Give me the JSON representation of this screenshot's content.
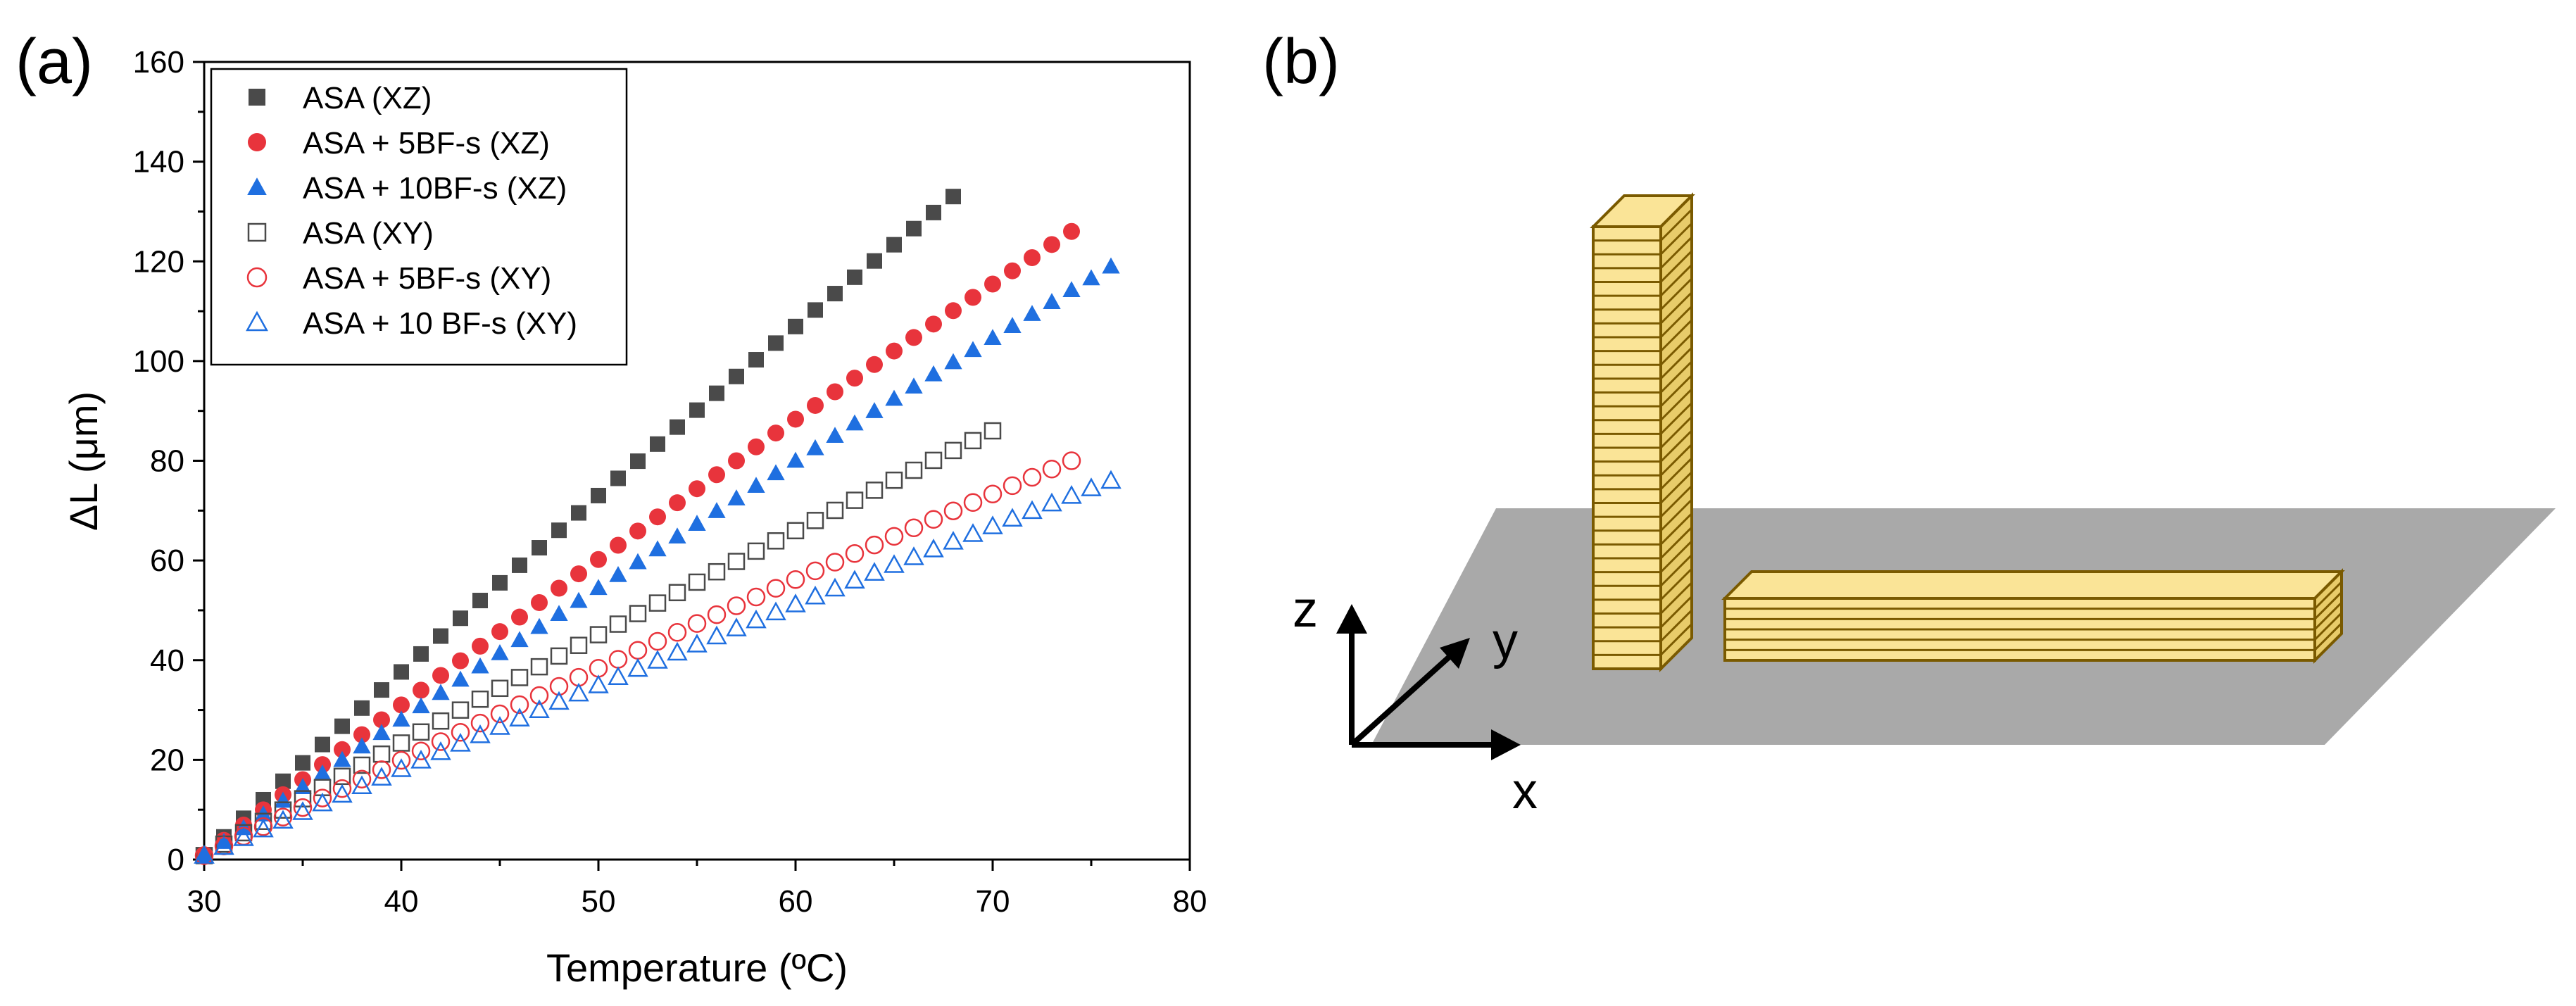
{
  "panels": {
    "a_label": "(a)",
    "b_label": "(b)"
  },
  "chart_data": {
    "type": "scatter",
    "xlabel": "Temperature (ºC)",
    "ylabel": "ΔL (μm)",
    "xlim": [
      30,
      80
    ],
    "ylim": [
      0,
      160
    ],
    "xticks": [
      30,
      40,
      50,
      60,
      70,
      80
    ],
    "yticks": [
      0,
      20,
      40,
      60,
      80,
      100,
      120,
      140,
      160
    ],
    "legend_position": "top-left",
    "series": [
      {
        "name": "ASA (XZ)",
        "marker": "square",
        "filled": true,
        "color": "#4a4a4a",
        "x_start": 30,
        "x_end": 68,
        "y_start": 0.8,
        "y_end": 133
      },
      {
        "name": "ASA + 5BF-s (XZ)",
        "marker": "circle",
        "filled": true,
        "color": "#e8343c",
        "x_start": 30,
        "x_end": 74,
        "y_start": 0.8,
        "y_end": 126
      },
      {
        "name": "ASA + 10BF-s (XZ)",
        "marker": "triangle",
        "filled": true,
        "color": "#1f6fe0",
        "x_start": 30,
        "x_end": 76,
        "y_start": 0.8,
        "y_end": 119
      },
      {
        "name": "ASA (XY)",
        "marker": "square",
        "filled": false,
        "color": "#4a4a4a",
        "x_start": 30,
        "x_end": 70,
        "y_start": 0.8,
        "y_end": 86
      },
      {
        "name": "ASA + 5BF-s (XY)",
        "marker": "circle",
        "filled": false,
        "color": "#e8343c",
        "x_start": 30,
        "x_end": 74,
        "y_start": 0.8,
        "y_end": 80
      },
      {
        "name": "ASA + 10 BF-s (XY)",
        "marker": "triangle",
        "filled": false,
        "color": "#1f6fe0",
        "x_start": 30,
        "x_end": 76,
        "y_start": 0.8,
        "y_end": 76
      }
    ]
  },
  "diagram": {
    "axis_x": "x",
    "axis_y": "y",
    "axis_z": "z",
    "plate_color": "#a9a9a9",
    "sample_fill": "#fae497",
    "sample_stroke": "#7a5a00"
  }
}
